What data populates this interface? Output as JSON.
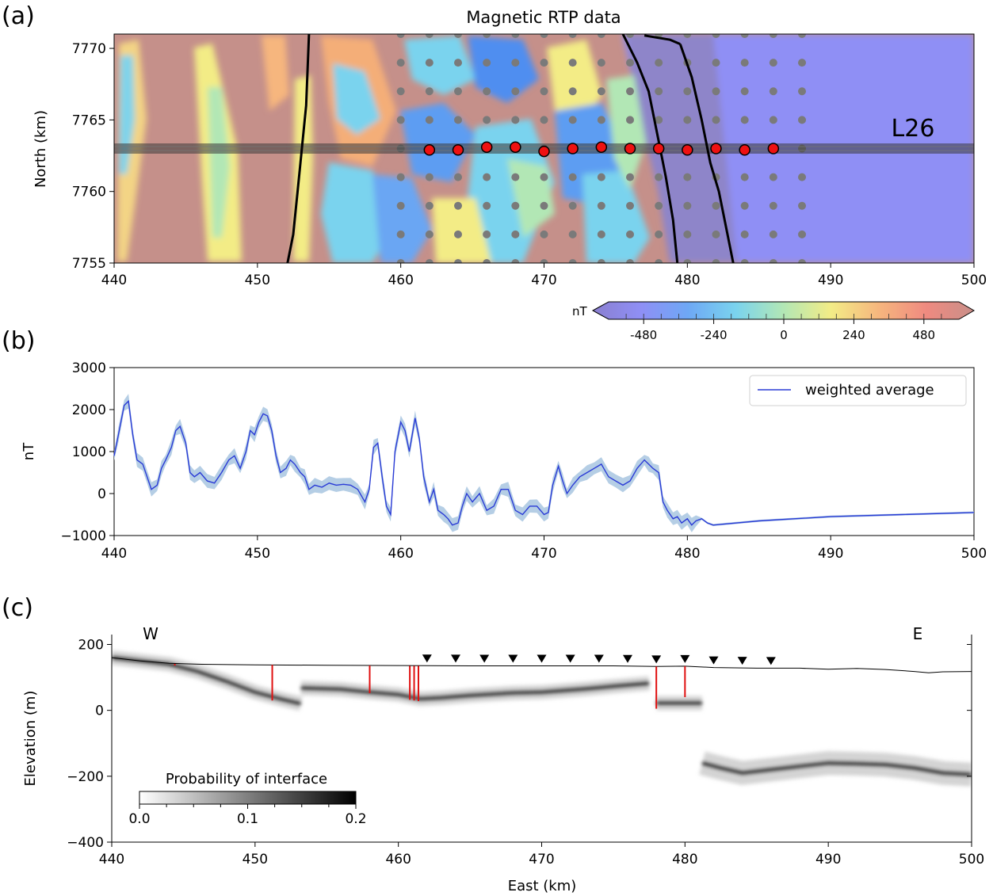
{
  "figure": {
    "panel_labels": [
      "(a)",
      "(b)",
      "(c)"
    ]
  },
  "chart_data": [
    {
      "type": "heatmap",
      "panel": "(a)",
      "title": "Magnetic RTP data",
      "xlabel": "",
      "ylabel": "North (km)",
      "xlim": [
        440,
        500
      ],
      "ylim": [
        7755,
        7771
      ],
      "x_ticks": [
        "440",
        "450",
        "460",
        "470",
        "480",
        "490",
        "500"
      ],
      "y_ticks": [
        "7755",
        "7760",
        "7765",
        "7770"
      ],
      "line_label": "L26",
      "flight_line_north": 7763,
      "colorbar": {
        "label": "nT",
        "range": [
          -600,
          600
        ],
        "ticks": [
          "-480",
          "-240",
          "0",
          "240",
          "480"
        ],
        "colors": [
          "#8a7fd0",
          "#8f8ff5",
          "#6ea8f5",
          "#7ad3ee",
          "#b2e7b5",
          "#f3ec86",
          "#f6b67e",
          "#ef8a80",
          "#c98f89"
        ]
      },
      "selected_soundings": [
        {
          "x": 462,
          "y": 7762.9
        },
        {
          "x": 464,
          "y": 7762.9
        },
        {
          "x": 466,
          "y": 7763.1
        },
        {
          "x": 468,
          "y": 7763.1
        },
        {
          "x": 470,
          "y": 7762.8
        },
        {
          "x": 472,
          "y": 7763.0
        },
        {
          "x": 474,
          "y": 7763.1
        },
        {
          "x": 476,
          "y": 7763.0
        },
        {
          "x": 478,
          "y": 7763.0
        },
        {
          "x": 480,
          "y": 7762.9
        },
        {
          "x": 482,
          "y": 7763.0
        },
        {
          "x": 484,
          "y": 7762.9
        },
        {
          "x": 486,
          "y": 7763.0
        }
      ],
      "grid_points": {
        "x_from": 460,
        "x_to": 488,
        "x_step": 2,
        "y_from": 7755,
        "y_to": 7771,
        "y_step": 2
      },
      "boundaries": [
        {
          "x": [
            453.6,
            453.4,
            453.0,
            452.8,
            452.5,
            452.1
          ],
          "y": [
            7771,
            7766,
            7762,
            7760,
            7757,
            7755
          ]
        },
        {
          "x": [
            475.5,
            476.5,
            477.3,
            477.9,
            478.5,
            479.0,
            479.3
          ],
          "y": [
            7771,
            7769,
            7767,
            7764,
            7761,
            7758,
            7755
          ]
        },
        {
          "x": [
            477.0,
            478.8,
            479.5
          ],
          "y": [
            7770.9,
            7770.6,
            7770.3
          ]
        },
        {
          "x": [
            479.5,
            480.3,
            481.0,
            481.6,
            482.2,
            482.8,
            483.2
          ],
          "y": [
            7770.3,
            7768,
            7765,
            7762,
            7760,
            7757,
            7755
          ]
        }
      ]
    },
    {
      "type": "line",
      "panel": "(b)",
      "xlabel": "",
      "ylabel": "nT",
      "xlim": [
        440,
        500
      ],
      "ylim": [
        -1000,
        3000
      ],
      "x_ticks": [
        "440",
        "450",
        "460",
        "470",
        "480",
        "490",
        "500"
      ],
      "y_ticks": [
        "−1000",
        "0",
        "1000",
        "2000",
        "3000"
      ],
      "legend": "top-right",
      "series": [
        {
          "name": "weighted average",
          "color": "#2a3bd6",
          "x": [
            440.0,
            440.3,
            440.7,
            441.0,
            441.3,
            441.6,
            442.0,
            442.3,
            442.6,
            443.0,
            443.3,
            443.6,
            444.0,
            444.3,
            444.6,
            445.0,
            445.3,
            445.6,
            446.0,
            446.5,
            447.0,
            447.5,
            448.0,
            448.4,
            448.8,
            449.2,
            449.5,
            449.8,
            450.1,
            450.4,
            450.7,
            451.0,
            451.3,
            451.6,
            452.0,
            452.3,
            452.6,
            453.0,
            453.3,
            453.6,
            454.0,
            454.5,
            455.0,
            455.5,
            456.0,
            456.5,
            457.0,
            457.5,
            457.8,
            458.1,
            458.4,
            458.7,
            459.0,
            459.3,
            459.6,
            460.0,
            460.3,
            460.6,
            461.0,
            461.3,
            461.6,
            462.0,
            462.3,
            462.6,
            463.0,
            463.3,
            463.6,
            464.0,
            464.3,
            464.6,
            465.0,
            465.5,
            466.0,
            466.5,
            467.0,
            467.5,
            468.0,
            468.5,
            469.0,
            469.5,
            470.0,
            470.3,
            470.6,
            471.0,
            471.3,
            471.6,
            472.0,
            472.5,
            473.0,
            473.5,
            474.0,
            474.5,
            475.0,
            475.5,
            476.0,
            476.5,
            477.0,
            477.3,
            477.6,
            478.0,
            478.3,
            478.6,
            479.0,
            479.3,
            479.6,
            480.0,
            480.3,
            480.6,
            481.0,
            481.4,
            481.8,
            485.0,
            490.0,
            495.0,
            500.0
          ],
          "y": [
            900,
            1400,
            2100,
            2200,
            1400,
            800,
            700,
            400,
            100,
            200,
            600,
            800,
            1100,
            1500,
            1600,
            1200,
            500,
            400,
            500,
            300,
            250,
            500,
            800,
            900,
            600,
            1000,
            1500,
            1400,
            1700,
            1900,
            1850,
            1500,
            900,
            500,
            600,
            800,
            700,
            500,
            400,
            100,
            200,
            150,
            250,
            200,
            220,
            200,
            100,
            -200,
            100,
            1100,
            1200,
            400,
            -300,
            -500,
            1000,
            1700,
            1500,
            1000,
            1800,
            1300,
            400,
            -200,
            100,
            -400,
            -500,
            -600,
            -750,
            -700,
            -300,
            0,
            -200,
            0,
            -400,
            -300,
            100,
            100,
            -400,
            -500,
            -300,
            -300,
            -500,
            -450,
            200,
            650,
            300,
            0,
            200,
            400,
            500,
            600,
            700,
            400,
            300,
            200,
            300,
            600,
            800,
            700,
            600,
            500,
            -200,
            -400,
            -600,
            -550,
            -700,
            -600,
            -750,
            -650,
            -600,
            -700,
            -750,
            -650,
            -550,
            -500,
            -450
          ]
        }
      ]
    },
    {
      "type": "heatmap",
      "panel": "(c)",
      "xlabel": "East (km)",
      "ylabel": "Elevation (m)",
      "xlim": [
        440,
        500
      ],
      "ylim": [
        -400,
        230
      ],
      "x_ticks": [
        "440",
        "450",
        "460",
        "470",
        "480",
        "490",
        "500"
      ],
      "y_ticks": [
        "−400",
        "−200",
        "0",
        "200"
      ],
      "side_labels": [
        "W",
        "E"
      ],
      "colorbar": {
        "label": "Probability of interface",
        "ticks": [
          "0.0",
          "0.1",
          "0.2"
        ],
        "range": [
          0,
          0.2
        ]
      },
      "surface": {
        "x": [
          440,
          442,
          444,
          446,
          450,
          455,
          460,
          465,
          470,
          475,
          478,
          480,
          482,
          485,
          488,
          490,
          492,
          494,
          496,
          497,
          498,
          500
        ],
        "y": [
          160,
          150,
          143,
          140,
          138,
          137,
          136,
          135,
          135,
          135,
          133,
          134,
          130,
          128,
          128,
          125,
          127,
          124,
          118,
          114,
          117,
          118
        ]
      },
      "station_markers_x": [
        462,
        464,
        466,
        468,
        470,
        472,
        474,
        476,
        478,
        480,
        482,
        484,
        486
      ],
      "interface_segments": [
        {
          "x": [
            440,
            442,
            444,
            446,
            448,
            450,
            452,
            453.2
          ],
          "y": [
            160,
            150,
            140,
            118,
            88,
            55,
            32,
            20
          ]
        },
        {
          "x": [
            453.2,
            456,
            458,
            460,
            461.5,
            463,
            465,
            468,
            470,
            473,
            475,
            477.5
          ],
          "y": [
            68,
            64,
            55,
            48,
            35,
            38,
            45,
            53,
            55,
            65,
            73,
            82
          ]
        },
        {
          "x": [
            478,
            481.2
          ],
          "y": [
            22,
            22
          ]
        },
        {
          "x": [
            481.2,
            482.5,
            484,
            486,
            488,
            490,
            492,
            494,
            496,
            498,
            500
          ],
          "y": [
            -160,
            -175,
            -190,
            -180,
            -170,
            -160,
            -162,
            -165,
            -175,
            -190,
            -195
          ]
        }
      ],
      "fault_ticks": [
        {
          "x": 444.4,
          "top": 141,
          "bottom": 136
        },
        {
          "x": 451.2,
          "top": 138,
          "bottom": 30
        },
        {
          "x": 458.0,
          "top": 136,
          "bottom": 52
        },
        {
          "x": 460.8,
          "top": 135,
          "bottom": 32
        },
        {
          "x": 461.1,
          "top": 135,
          "bottom": 30
        },
        {
          "x": 461.4,
          "top": 135,
          "bottom": 28
        },
        {
          "x": 478.0,
          "top": 133,
          "bottom": 5
        },
        {
          "x": 480.0,
          "top": 134,
          "bottom": 40
        }
      ]
    }
  ]
}
